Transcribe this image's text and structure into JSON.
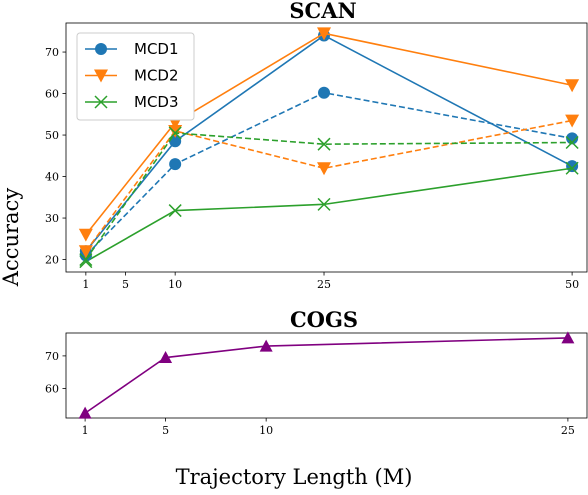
{
  "chart_data": [
    {
      "type": "line",
      "title": "SCAN",
      "xlabel": "",
      "ylabel": "Accuracy",
      "x": [
        1,
        10,
        25,
        50
      ],
      "xticks": [
        1,
        5,
        10,
        25,
        50
      ],
      "yticks": [
        20,
        30,
        40,
        50,
        60,
        70
      ],
      "xlim": [
        -1,
        51.5
      ],
      "ylim": [
        17,
        77
      ],
      "legend": "upper-left",
      "series": [
        {
          "name": "MCD1",
          "style": "solid",
          "marker": "circle",
          "color": "#1f77b4",
          "values": [
            22,
            48.5,
            74,
            42.5
          ]
        },
        {
          "name": "MCD2",
          "style": "solid",
          "marker": "triangle-down",
          "color": "#ff7f0e",
          "values": [
            26,
            53,
            74.5,
            62
          ]
        },
        {
          "name": "MCD3",
          "style": "solid",
          "marker": "x",
          "color": "#2ca02c",
          "values": [
            19.5,
            31.8,
            33.3,
            42
          ]
        },
        {
          "name": "",
          "style": "dashed",
          "marker": "circle",
          "color": "#1f77b4",
          "values": [
            21,
            43,
            60.2,
            49.2
          ]
        },
        {
          "name": "",
          "style": "dashed",
          "marker": "triangle-down",
          "color": "#ff7f0e",
          "values": [
            22,
            51,
            42,
            53.5
          ]
        },
        {
          "name": "",
          "style": "dashed",
          "marker": "x",
          "color": "#2ca02c",
          "values": [
            20,
            50.5,
            47.8,
            48.2
          ]
        }
      ]
    },
    {
      "type": "line",
      "title": "COGS",
      "xlabel": "Trajectory Length (M)",
      "ylabel": "",
      "x": [
        1,
        5,
        10,
        25
      ],
      "xticks": [
        1,
        5,
        10,
        25
      ],
      "yticks": [
        60,
        70
      ],
      "xlim": [
        0.05,
        25.95
      ],
      "ylim": [
        51,
        77
      ],
      "series": [
        {
          "name": "",
          "style": "solid",
          "marker": "triangle-up",
          "color": "#800080",
          "values": [
            52.5,
            69.5,
            73,
            75.5
          ]
        }
      ]
    }
  ]
}
